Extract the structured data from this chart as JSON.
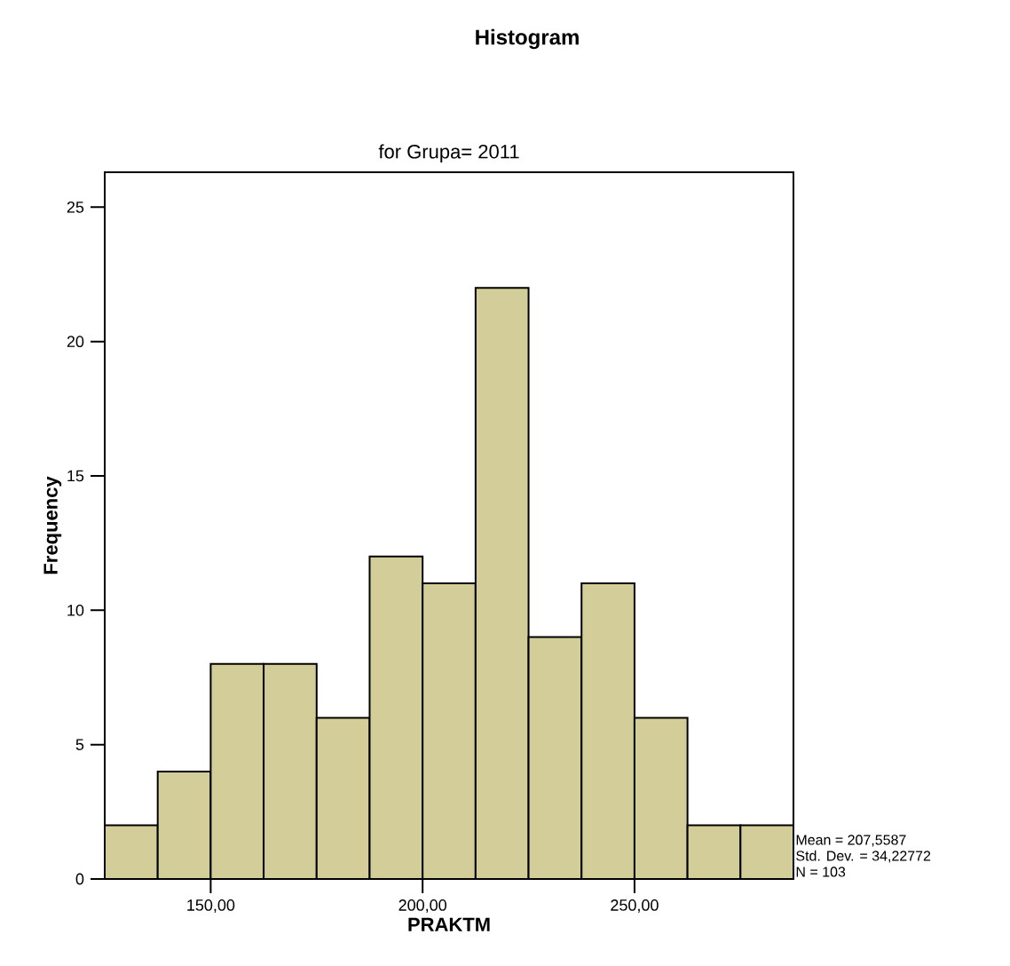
{
  "chart_data": {
    "type": "histogram",
    "title": "Histogram",
    "subtitle": "for Grupa= 2011",
    "xlabel": "PRAKTM",
    "ylabel": "Frequency",
    "bins": [
      125,
      137.5,
      150,
      162.5,
      175,
      187.5,
      200,
      212.5,
      225,
      237.5,
      250,
      262.5,
      275,
      287.5
    ],
    "values": [
      2,
      4,
      8,
      8,
      6,
      12,
      11,
      22,
      9,
      11,
      6,
      2,
      2
    ],
    "color": "#d3ce99",
    "xlim": [
      125,
      287.5
    ],
    "ylim": [
      0,
      26.3
    ],
    "xticks": [
      {
        "value": 150,
        "label": "150,00"
      },
      {
        "value": 200,
        "label": "200,00"
      },
      {
        "value": 250,
        "label": "250,00"
      }
    ],
    "yticks": [
      0,
      5,
      10,
      15,
      20,
      25
    ],
    "grid": false,
    "annotations": [
      "Mean = 207,5587",
      "Std. Dev. = 34,22772",
      "N = 103"
    ]
  }
}
